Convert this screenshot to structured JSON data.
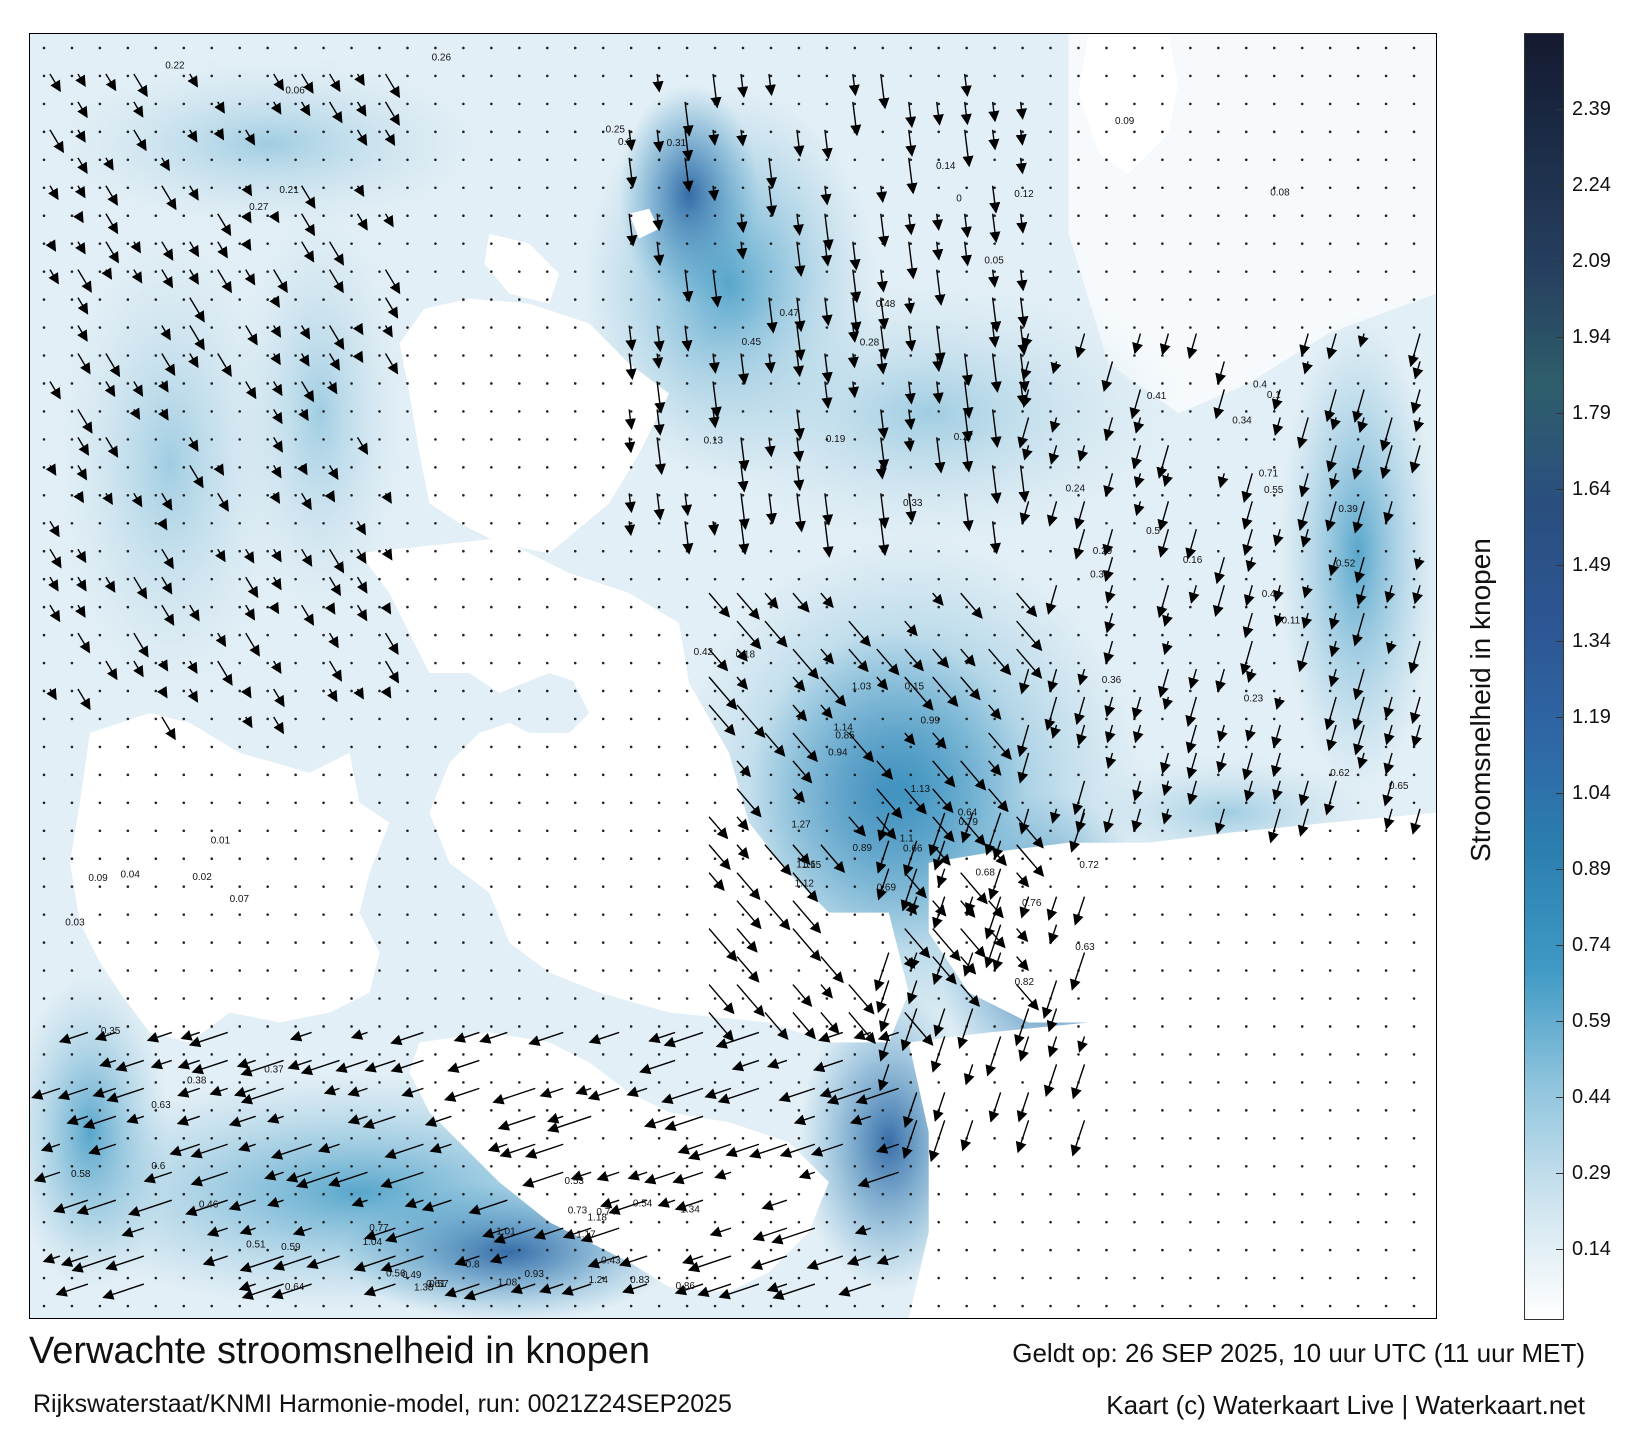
{
  "title": "Verwachte stroomsnelheid in knopen",
  "subtitle": "Rijkswaterstaat/KNMI Harmonie-model, run: 0021Z24SEP2025",
  "validity": "Geldt op: 26 SEP 2025, 10 uur UTC (11 uur MET)",
  "credit": "Kaart (c) Waterkaart Live | Waterkaart.net",
  "colorbar": {
    "label": "Stroomsnelheid in knopen",
    "ticks": [
      "2.39",
      "2.24",
      "2.09",
      "1.94",
      "1.79",
      "1.64",
      "1.49",
      "1.34",
      "1.19",
      "1.04",
      "0.89",
      "0.74",
      "0.59",
      "0.44",
      "0.29",
      "0.14"
    ],
    "tick_values": [
      2.39,
      2.24,
      2.09,
      1.94,
      1.79,
      1.64,
      1.49,
      1.34,
      1.19,
      1.04,
      0.89,
      0.74,
      0.59,
      0.44,
      0.29,
      0.14
    ],
    "range": [
      0,
      2.54
    ],
    "colors": [
      "#ffffff",
      "#cfe4ef",
      "#8fc4dd",
      "#3f99c4",
      "#2b7fb0",
      "#2f66a4",
      "#2c5592",
      "#2a4f7e",
      "#2e5e6b",
      "#263f5f",
      "#1c2d48",
      "#141a30"
    ]
  },
  "map": {
    "land_color": "#ffffff",
    "sea_base_color": "#dcecf4",
    "speed_labels": [
      {
        "text": "0.27",
        "area": "north-west"
      },
      {
        "text": "0.22",
        "area": "north-west"
      },
      {
        "text": "0.21",
        "area": "north-west"
      },
      {
        "text": "0.06",
        "area": "north-west"
      },
      {
        "text": "0.2",
        "area": "north"
      },
      {
        "text": "0.26",
        "area": "north"
      },
      {
        "text": "0.25",
        "area": "north"
      },
      {
        "text": "0.31",
        "area": "north"
      },
      {
        "text": "0.05",
        "area": "north-east"
      },
      {
        "text": "0.09",
        "area": "north-east"
      },
      {
        "text": "0.14",
        "area": "north-east"
      },
      {
        "text": "0.12",
        "area": "north-east"
      },
      {
        "text": "0.08",
        "area": "north-east"
      },
      {
        "text": "0.34",
        "area": "central"
      },
      {
        "text": "0.24",
        "area": "central"
      },
      {
        "text": "0.18",
        "area": "central"
      },
      {
        "text": "0.29",
        "area": "central"
      },
      {
        "text": "0.36",
        "area": "central"
      },
      {
        "text": "0.33",
        "area": "central"
      },
      {
        "text": "0.43",
        "area": "channel-south"
      },
      {
        "text": "0.54",
        "area": "channel-south"
      },
      {
        "text": "0.56",
        "area": "channel-south"
      },
      {
        "text": "0.61",
        "area": "channel-south"
      },
      {
        "text": "0.49",
        "area": "channel-south"
      },
      {
        "text": "0.53",
        "area": "channel-south"
      },
      {
        "text": "1.17",
        "area": "channel-south"
      },
      {
        "text": "1.38",
        "area": "channel-south"
      },
      {
        "text": "1.27",
        "area": "strait"
      },
      {
        "text": "1.15",
        "area": "strait"
      },
      {
        "text": "1.16",
        "area": "strait"
      },
      {
        "text": "1.12",
        "area": "strait"
      },
      {
        "text": "0.94",
        "area": "strait"
      },
      {
        "text": "1.03",
        "area": "strait"
      },
      {
        "text": "0.99",
        "area": "strait"
      },
      {
        "text": "0.85",
        "area": "strait"
      },
      {
        "text": "0.89",
        "area": "strait"
      },
      {
        "text": "0.66",
        "area": "strait"
      },
      {
        "text": "0.69",
        "area": "strait"
      },
      {
        "text": "0.76",
        "area": "coast-east"
      },
      {
        "text": "0.79",
        "area": "coast-east"
      },
      {
        "text": "0.82",
        "area": "coast-east"
      },
      {
        "text": "0.72",
        "area": "coast-east"
      },
      {
        "text": "0.68",
        "area": "coast-east"
      },
      {
        "text": "0.64",
        "area": "coast-east"
      },
      {
        "text": "0.63",
        "area": "coast-east"
      },
      {
        "text": "0.62",
        "area": "east"
      },
      {
        "text": "0.71",
        "area": "east"
      },
      {
        "text": "0.65",
        "area": "east"
      },
      {
        "text": "0.55",
        "area": "east"
      },
      {
        "text": "0.39",
        "area": "east"
      },
      {
        "text": "0.44",
        "area": "east"
      },
      {
        "text": "0.52",
        "area": "east"
      },
      {
        "text": "0.16",
        "area": "central"
      },
      {
        "text": "0.13",
        "area": "central"
      },
      {
        "text": "0.11",
        "area": "central"
      },
      {
        "text": "0.15",
        "area": "central"
      },
      {
        "text": "0.1",
        "area": "central"
      },
      {
        "text": "0.23",
        "area": "central"
      },
      {
        "text": "0.17",
        "area": "central"
      },
      {
        "text": "0.19",
        "area": "central"
      },
      {
        "text": "0.37",
        "area": "south-west"
      },
      {
        "text": "0.38",
        "area": "south-west"
      },
      {
        "text": "0.35",
        "area": "south-west"
      },
      {
        "text": "0.46",
        "area": "south-west"
      },
      {
        "text": "0.51",
        "area": "south-west"
      },
      {
        "text": "0.58",
        "area": "south-west"
      },
      {
        "text": "0.59",
        "area": "south-west"
      },
      {
        "text": "0.6",
        "area": "south-west"
      },
      {
        "text": "0.63",
        "area": "south-west"
      },
      {
        "text": "0.64",
        "area": "south-west"
      },
      {
        "text": "0.07",
        "area": "west"
      },
      {
        "text": "0.09",
        "area": "west"
      },
      {
        "text": "0.01",
        "area": "west"
      },
      {
        "text": "0.02",
        "area": "west"
      },
      {
        "text": "0.03",
        "area": "west"
      },
      {
        "text": "0.04",
        "area": "west"
      },
      {
        "text": "0",
        "area": "north-east"
      },
      {
        "text": "0.28",
        "area": "central"
      },
      {
        "text": "0.32",
        "area": "central"
      },
      {
        "text": "0.48",
        "area": "central"
      },
      {
        "text": "0.47",
        "area": "central"
      },
      {
        "text": "0.45",
        "area": "central"
      },
      {
        "text": "0.41",
        "area": "central"
      },
      {
        "text": "0.42",
        "area": "central"
      },
      {
        "text": "0.4",
        "area": "central"
      },
      {
        "text": "0.5",
        "area": "central"
      },
      {
        "text": "0.57",
        "area": "channel-south"
      },
      {
        "text": "0.73",
        "area": "channel-south"
      },
      {
        "text": "0.74",
        "area": "channel-south"
      },
      {
        "text": "0.77",
        "area": "channel-south"
      },
      {
        "text": "0.8",
        "area": "channel-south"
      },
      {
        "text": "0.83",
        "area": "channel-south"
      },
      {
        "text": "0.86",
        "area": "channel-south"
      },
      {
        "text": "0.93",
        "area": "channel-south"
      },
      {
        "text": "1.01",
        "area": "channel-south"
      },
      {
        "text": "1.04",
        "area": "channel-south"
      },
      {
        "text": "1.08",
        "area": "channel-south"
      },
      {
        "text": "1.13",
        "area": "strait"
      },
      {
        "text": "1.1",
        "area": "strait"
      },
      {
        "text": "1.14",
        "area": "strait"
      },
      {
        "text": "1.18",
        "area": "channel-south"
      },
      {
        "text": "1.24",
        "area": "channel-south"
      },
      {
        "text": "1.34",
        "area": "channel-south"
      }
    ]
  }
}
